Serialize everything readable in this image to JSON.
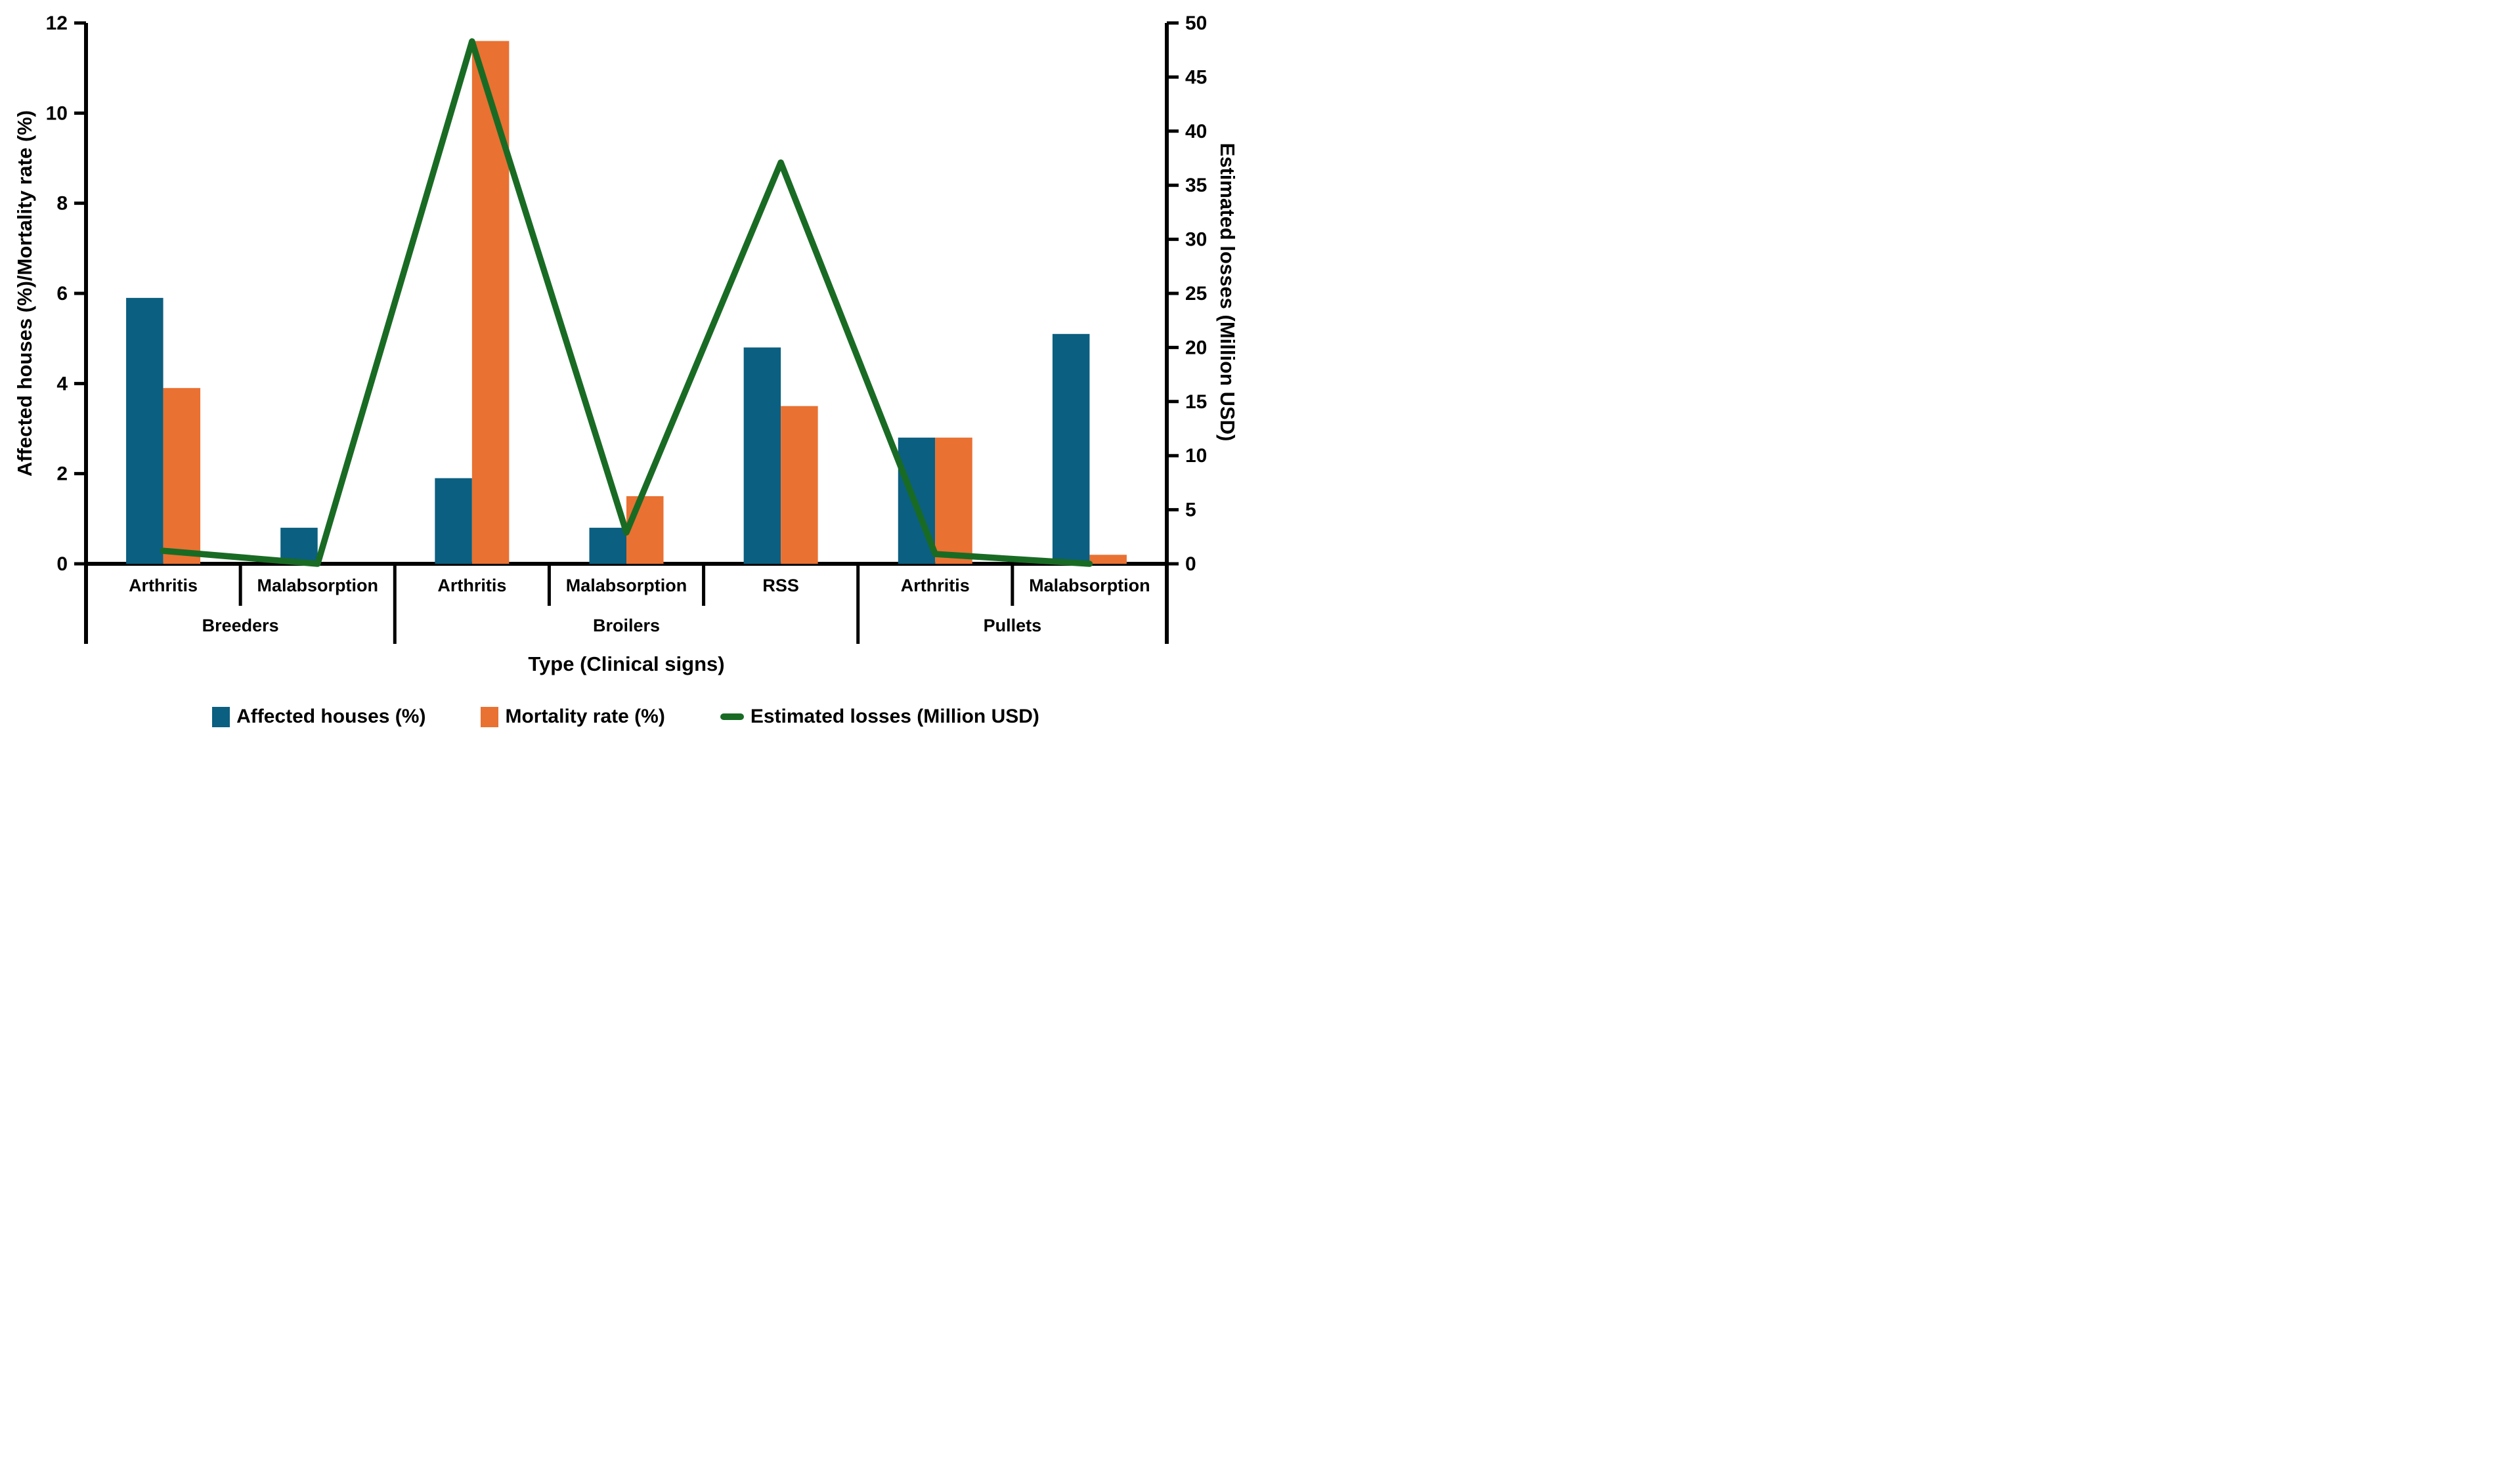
{
  "chart_data": {
    "type": "bar",
    "subtype": "grouped-bars-with-line-combo",
    "title": "",
    "categories": [
      "Arthritis",
      "Malabsorption",
      "Arthritis",
      "Malabsorption",
      "RSS",
      "Arthritis",
      "Malabsorption"
    ],
    "x_axis": {
      "title": "Type (Clinical signs)",
      "groups": [
        {
          "label": "Breeders",
          "categories": [
            "Arthritis",
            "Malabsorption"
          ]
        },
        {
          "label": "Broilers",
          "categories": [
            "Arthritis",
            "Malabsorption",
            "RSS"
          ]
        },
        {
          "label": "Pullets",
          "categories": [
            "Arthritis",
            "Malabsorption"
          ]
        }
      ]
    },
    "left_axis": {
      "title": "Affected houses (%)/Mortality rate (%)",
      "min": 0,
      "max": 12,
      "step": 2,
      "ticks": [
        0,
        2,
        4,
        6,
        8,
        10,
        12
      ]
    },
    "right_axis": {
      "title": "Estimated losses (Million USD)",
      "min": 0,
      "max": 50,
      "step": 5,
      "ticks": [
        0,
        5,
        10,
        15,
        20,
        25,
        30,
        35,
        40,
        45,
        50
      ]
    },
    "series": [
      {
        "name": "Affected houses (%)",
        "type": "bar",
        "axis": "left",
        "color": "#0B5F80",
        "values": [
          5.9,
          0.8,
          1.9,
          0.8,
          4.8,
          2.8,
          5.1
        ]
      },
      {
        "name": "Mortality rate (%)",
        "type": "bar",
        "axis": "left",
        "color": "#E97132",
        "values": [
          3.9,
          0,
          11.6,
          1.5,
          3.5,
          2.8,
          0.2
        ]
      },
      {
        "name": "Estimated losses (Million USD)",
        "type": "line",
        "axis": "right",
        "color": "#196B24",
        "values": [
          1.2,
          0,
          48.3,
          2.9,
          37.1,
          0.9,
          0
        ]
      }
    ],
    "axis_color": "#000000",
    "legend_position": "bottom",
    "grid": "off"
  }
}
